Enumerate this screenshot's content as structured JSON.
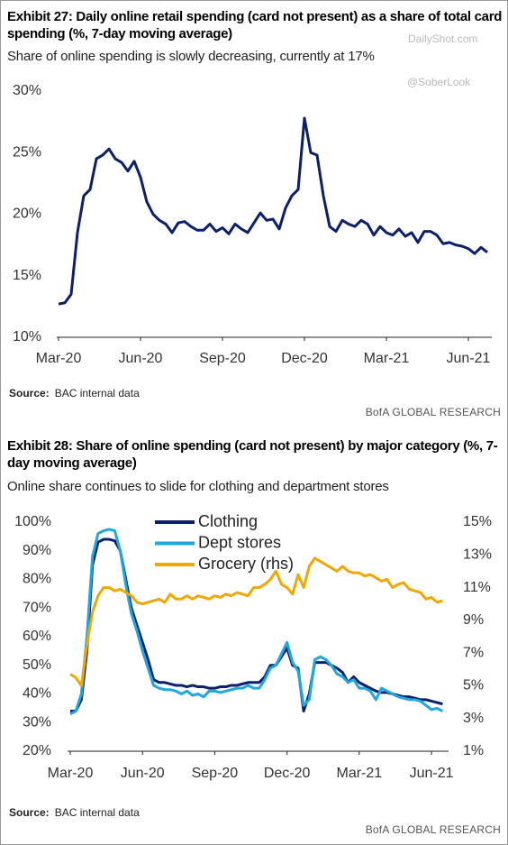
{
  "chart_data": [
    {
      "type": "line",
      "title": "Exhibit 27: Daily online retail spending (card not present) as a share of total card spending (%, 7-day moving average)",
      "subtitle": "Share of online spending is slowly decreasing, currently at 17%",
      "categories": [
        "Mar-20",
        null,
        null,
        null,
        null,
        null,
        null,
        null,
        null,
        null,
        null,
        null,
        null,
        "Jun-20",
        null,
        null,
        null,
        null,
        null,
        null,
        null,
        null,
        null,
        null,
        null,
        null,
        "Sep-20",
        null,
        null,
        null,
        null,
        null,
        null,
        null,
        null,
        null,
        null,
        null,
        null,
        "Dec-20",
        null,
        null,
        null,
        null,
        null,
        null,
        null,
        null,
        null,
        null,
        null,
        null,
        "Mar-21",
        null,
        null,
        null,
        null,
        null,
        null,
        null,
        null,
        null,
        null,
        null,
        null,
        "Jun-21",
        null,
        null,
        null
      ],
      "values": [
        12.7,
        12.8,
        13.5,
        18.5,
        21.5,
        22,
        24.5,
        24.8,
        25.3,
        24.5,
        24.2,
        23.5,
        24.3,
        23,
        21,
        20,
        19.5,
        19.2,
        18.5,
        19.3,
        19.4,
        19,
        18.7,
        18.7,
        19.2,
        18.6,
        18.9,
        18.4,
        19.2,
        18.8,
        18.5,
        19.3,
        20.1,
        19.5,
        19.6,
        18.8,
        20.5,
        21.5,
        22,
        27.8,
        25,
        24.8,
        21.5,
        19,
        18.6,
        19.5,
        19.2,
        19,
        19.5,
        19.2,
        18.3,
        19,
        18.5,
        18.3,
        18.8,
        18.2,
        18.5,
        17.7,
        18.6,
        18.6,
        18.3,
        17.6,
        17.7,
        17.5,
        17.4,
        17.2,
        16.8,
        17.3,
        16.9
      ],
      "color": "#0b1f6b",
      "ylim": [
        10,
        30
      ],
      "yticks": [
        {
          "value": 10,
          "label": "10%"
        },
        {
          "value": 15,
          "label": "15%"
        },
        {
          "value": 20,
          "label": "20%"
        },
        {
          "value": 25,
          "label": "25%"
        },
        {
          "value": 30,
          "label": "30%"
        }
      ],
      "grid": false,
      "source_label": "Source:",
      "source": "BAC internal data",
      "credit": "BofA GLOBAL RESEARCH",
      "watermarks": [
        "DailyShot.com",
        "@SoberLook"
      ]
    },
    {
      "type": "line",
      "title": "Exhibit 28: Share of online spending (card not present) by major category (%, 7-day moving average)",
      "subtitle": "Online share continues to slide for clothing and department stores",
      "categories": [
        "Mar-20",
        null,
        null,
        null,
        null,
        null,
        null,
        null,
        null,
        null,
        null,
        null,
        null,
        "Jun-20",
        null,
        null,
        null,
        null,
        null,
        null,
        null,
        null,
        null,
        null,
        null,
        null,
        "Sep-20",
        null,
        null,
        null,
        null,
        null,
        null,
        null,
        null,
        null,
        null,
        null,
        null,
        "Dec-20",
        null,
        null,
        null,
        null,
        null,
        null,
        null,
        null,
        null,
        null,
        null,
        null,
        "Mar-21",
        null,
        null,
        null,
        null,
        null,
        null,
        null,
        null,
        null,
        null,
        null,
        null,
        "Jun-21",
        null,
        null
      ],
      "series": [
        {
          "name": "Clothing",
          "color": "#0a1f6e",
          "values": [
            34,
            34,
            38,
            55,
            85,
            93,
            94,
            94,
            93.5,
            90,
            80,
            70,
            64,
            58,
            52,
            45,
            44,
            44,
            43.5,
            43,
            43,
            42.5,
            43,
            42.5,
            42.5,
            42,
            42,
            42.5,
            42.5,
            43,
            43,
            43.5,
            44,
            44,
            44,
            46,
            50,
            50,
            53,
            56,
            50,
            49,
            34,
            40,
            51,
            51,
            51,
            50,
            49,
            47.5,
            44,
            46,
            44,
            43,
            42,
            41,
            40.5,
            40.5,
            40,
            39.5,
            39,
            39,
            38.5,
            38,
            38,
            37.5,
            37,
            36.5
          ]
        },
        {
          "name": "Dept stores",
          "color": "#1fa8e0",
          "values": [
            33,
            34,
            40,
            60,
            88,
            96,
            97,
            97.5,
            97,
            90,
            78,
            68,
            62,
            55,
            49,
            43,
            42,
            41.5,
            41.5,
            41,
            40,
            41,
            39.5,
            40,
            39,
            41,
            41,
            40.5,
            41,
            41.5,
            42,
            42,
            43,
            42,
            42,
            45,
            49,
            50,
            54,
            58,
            51,
            48,
            36,
            38,
            52,
            53,
            52,
            50,
            47,
            46,
            44,
            45,
            42,
            42,
            41,
            38,
            42,
            41,
            40,
            39,
            38.5,
            38,
            38,
            37.5,
            36,
            34.5,
            35,
            34
          ]
        },
        {
          "name": "Grocery (rhs)",
          "color": "#f0a800",
          "axis": "y2",
          "values": [
            5.7,
            5.5,
            5.0,
            7.5,
            9.5,
            10.5,
            11.0,
            11.0,
            10.8,
            10.9,
            10.7,
            10.5,
            10.1,
            10.0,
            10.1,
            10.2,
            10.3,
            10.1,
            10.6,
            10.3,
            10.3,
            10.5,
            10.3,
            10.5,
            10.4,
            10.3,
            10.5,
            10.4,
            10.6,
            10.5,
            10.7,
            10.6,
            10.5,
            11.0,
            11.0,
            11.2,
            11.5,
            12.0,
            11.2,
            11.0,
            10.6,
            11.8,
            11.0,
            12.3,
            12.8,
            12.6,
            12.4,
            12.2,
            12.0,
            12.3,
            12.0,
            11.9,
            11.9,
            11.7,
            11.8,
            11.6,
            11.4,
            11.5,
            11.0,
            11.2,
            11.3,
            10.9,
            10.8,
            10.7,
            10.3,
            10.4,
            10.1,
            10.2
          ]
        }
      ],
      "ylim": [
        20,
        100
      ],
      "yticks": [
        {
          "value": 20,
          "label": "20%"
        },
        {
          "value": 30,
          "label": "30%"
        },
        {
          "value": 40,
          "label": "40%"
        },
        {
          "value": 50,
          "label": "50%"
        },
        {
          "value": 60,
          "label": "60%"
        },
        {
          "value": 70,
          "label": "70%"
        },
        {
          "value": 80,
          "label": "80%"
        },
        {
          "value": 90,
          "label": "90%"
        },
        {
          "value": 100,
          "label": "100%"
        }
      ],
      "y2lim": [
        1,
        15
      ],
      "y2ticks": [
        {
          "value": 1,
          "label": "1%"
        },
        {
          "value": 3,
          "label": "3%"
        },
        {
          "value": 5,
          "label": "5%"
        },
        {
          "value": 7,
          "label": "7%"
        },
        {
          "value": 9,
          "label": "9%"
        },
        {
          "value": 11,
          "label": "11%"
        },
        {
          "value": 13,
          "label": "13%"
        },
        {
          "value": 15,
          "label": "15%"
        }
      ],
      "grid": false,
      "legend": "upper left",
      "source_label": "Source:",
      "source": "BAC internal data",
      "credit": "BofA GLOBAL RESEARCH"
    }
  ]
}
